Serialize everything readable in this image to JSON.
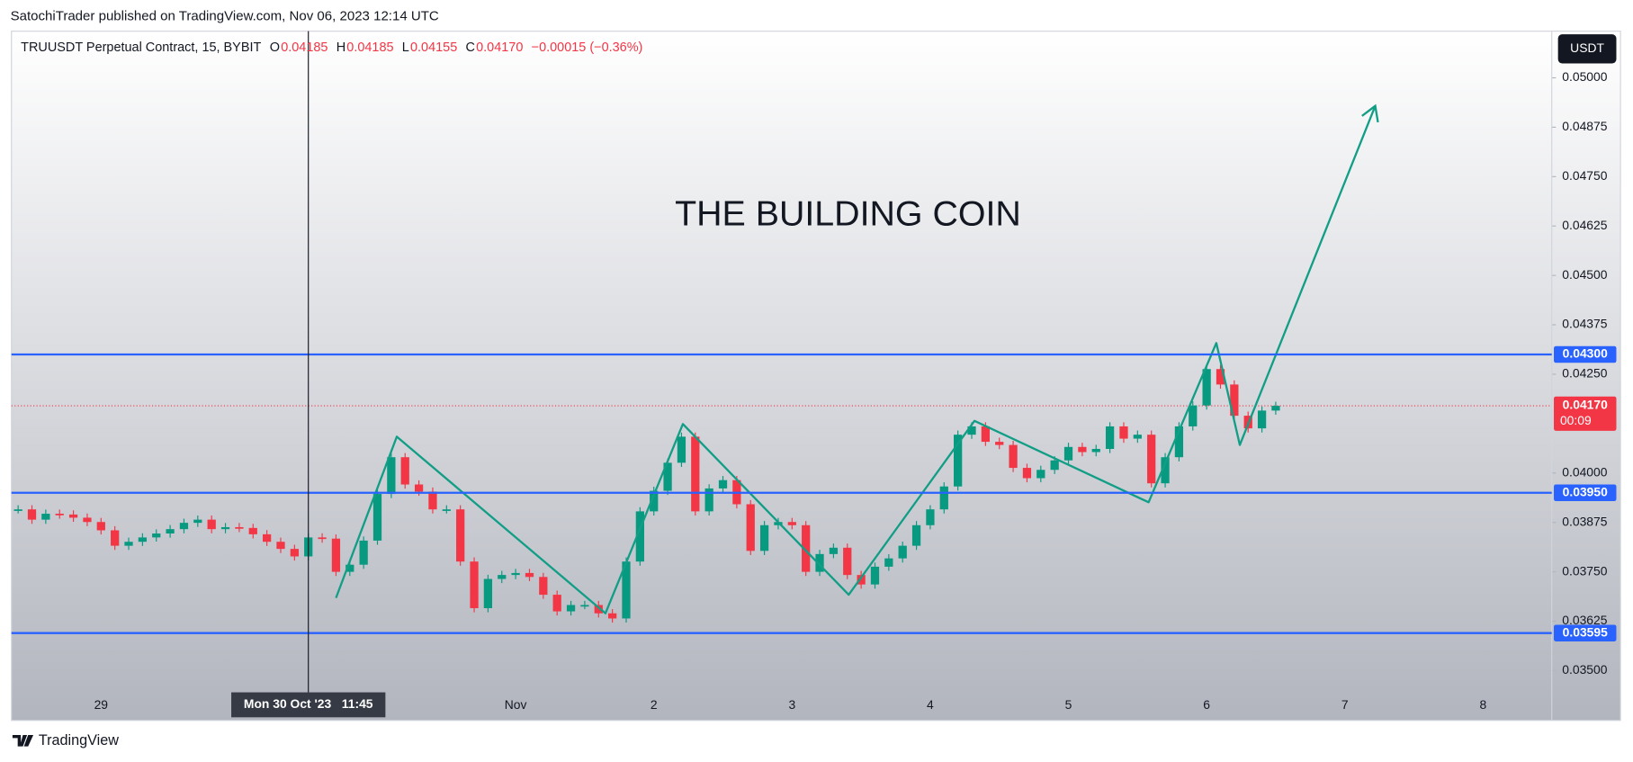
{
  "header": {
    "publisher": "SatochiTrader published on TradingView.com, Nov 06, 2023 12:14 UTC"
  },
  "footer": {
    "brand": "TradingView"
  },
  "chart_data": {
    "type": "candlestick",
    "symbol": "TRUUSDT Perpetual Contract, 15, BYBIT",
    "ohlc": [
      {
        "key": "O",
        "value": "0.04185"
      },
      {
        "key": "H",
        "value": "0.04185"
      },
      {
        "key": "L",
        "value": "0.04155"
      },
      {
        "key": "C",
        "value": "0.04170"
      }
    ],
    "change": "−0.00015 (−0.36%)",
    "currency": "USDT",
    "title": "THE BUILDING COIN",
    "crosshair": {
      "index": 21,
      "label": "Mon 30 Oct '23   11:45"
    },
    "categories": [
      null,
      null,
      null,
      null,
      null,
      null,
      "29",
      null,
      null,
      null,
      null,
      null,
      null,
      null,
      null,
      null,
      null,
      null,
      null,
      null,
      null,
      null,
      null,
      null,
      null,
      null,
      null,
      null,
      null,
      null,
      null,
      null,
      null,
      null,
      null,
      null,
      "Nov",
      null,
      null,
      null,
      null,
      null,
      null,
      null,
      null,
      null,
      "2",
      null,
      null,
      null,
      null,
      null,
      null,
      null,
      null,
      null,
      "3",
      null,
      null,
      null,
      null,
      null,
      null,
      null,
      null,
      null,
      "4",
      null,
      null,
      null,
      null,
      null,
      null,
      null,
      null,
      null,
      "5",
      null,
      null,
      null,
      null,
      null,
      null,
      null,
      null,
      null,
      "6",
      null,
      null,
      null,
      null,
      null,
      null,
      null,
      null,
      null,
      "7",
      null,
      null,
      null,
      null,
      null,
      null,
      null,
      null,
      null,
      "8",
      null,
      null,
      null
    ],
    "values": [
      0.03908,
      0.03882,
      0.03897,
      0.03895,
      0.03887,
      0.03876,
      0.03855,
      0.03816,
      0.03826,
      0.03837,
      0.03847,
      0.03858,
      0.03874,
      0.03882,
      0.03858,
      0.03863,
      0.03861,
      0.03845,
      0.03826,
      0.03808,
      0.03789,
      0.03837,
      0.03834,
      0.0375,
      0.03768,
      0.03829,
      0.03947,
      0.0404,
      0.03971,
      0.03953,
      0.03908,
      0.03908,
      0.03776,
      0.03658,
      0.03732,
      0.03742,
      0.03747,
      0.03737,
      0.03692,
      0.0365,
      0.03666,
      0.03666,
      0.03645,
      0.03632,
      0.03776,
      0.03903,
      0.03955,
      0.04026,
      0.04092,
      0.03903,
      0.03961,
      0.03982,
      0.03921,
      0.03803,
      0.03868,
      0.03876,
      0.03868,
      0.0375,
      0.03795,
      0.03811,
      0.03742,
      0.03718,
      0.03763,
      0.03784,
      0.03816,
      0.03868,
      0.03908,
      0.03966,
      0.04097,
      0.04118,
      0.04079,
      0.04071,
      0.04013,
      0.03987,
      0.04008,
      0.04032,
      0.04066,
      0.04053,
      0.04061,
      0.04118,
      0.04087,
      0.04097,
      0.03974,
      0.0404,
      0.04118,
      0.04171,
      0.04263,
      0.04224,
      0.04145,
      0.04113,
      0.04158,
      0.0417,
      null,
      null,
      null,
      null,
      null,
      null,
      null,
      null,
      null,
      null,
      null,
      null,
      null,
      null,
      null,
      null,
      null,
      null
    ],
    "up_color": "#089981",
    "down_color": "#f23645",
    "ylim": [
      0.03374,
      0.05118
    ],
    "yticks": [
      {
        "value": 0.035,
        "label": "0.03500"
      },
      {
        "value": 0.03625,
        "label": "0.03625"
      },
      {
        "value": 0.0375,
        "label": "0.03750"
      },
      {
        "value": 0.03875,
        "label": "0.03875"
      },
      {
        "value": 0.04,
        "label": "0.04000"
      },
      {
        "value": 0.0425,
        "label": "0.04250"
      },
      {
        "value": 0.04375,
        "label": "0.04375"
      },
      {
        "value": 0.045,
        "label": "0.04500"
      },
      {
        "value": 0.04625,
        "label": "0.04625"
      },
      {
        "value": 0.0475,
        "label": "0.04750"
      },
      {
        "value": 0.04875,
        "label": "0.04875"
      },
      {
        "value": 0.05,
        "label": "0.05000"
      }
    ],
    "levels": [
      {
        "value": 0.043,
        "label": "0.04300"
      },
      {
        "value": 0.0395,
        "label": "0.03950"
      },
      {
        "value": 0.03595,
        "label": "0.03595"
      }
    ],
    "level_color": "#2962ff",
    "last_price": {
      "value": 0.0417,
      "label": "0.04170",
      "countdown": "00:09"
    },
    "drawing_color": "#129e86",
    "drawing": [
      {
        "index": 23.0,
        "price": 0.03684
      },
      {
        "index": 27.4,
        "price": 0.04092
      },
      {
        "index": 42.5,
        "price": 0.03645
      },
      {
        "index": 48.1,
        "price": 0.04124
      },
      {
        "index": 60.1,
        "price": 0.03692
      },
      {
        "index": 69.2,
        "price": 0.04132
      },
      {
        "index": 81.8,
        "price": 0.03926
      },
      {
        "index": 86.7,
        "price": 0.04329
      },
      {
        "index": 88.4,
        "price": 0.04071
      },
      {
        "index": 98.2,
        "price": 0.04929
      }
    ]
  }
}
